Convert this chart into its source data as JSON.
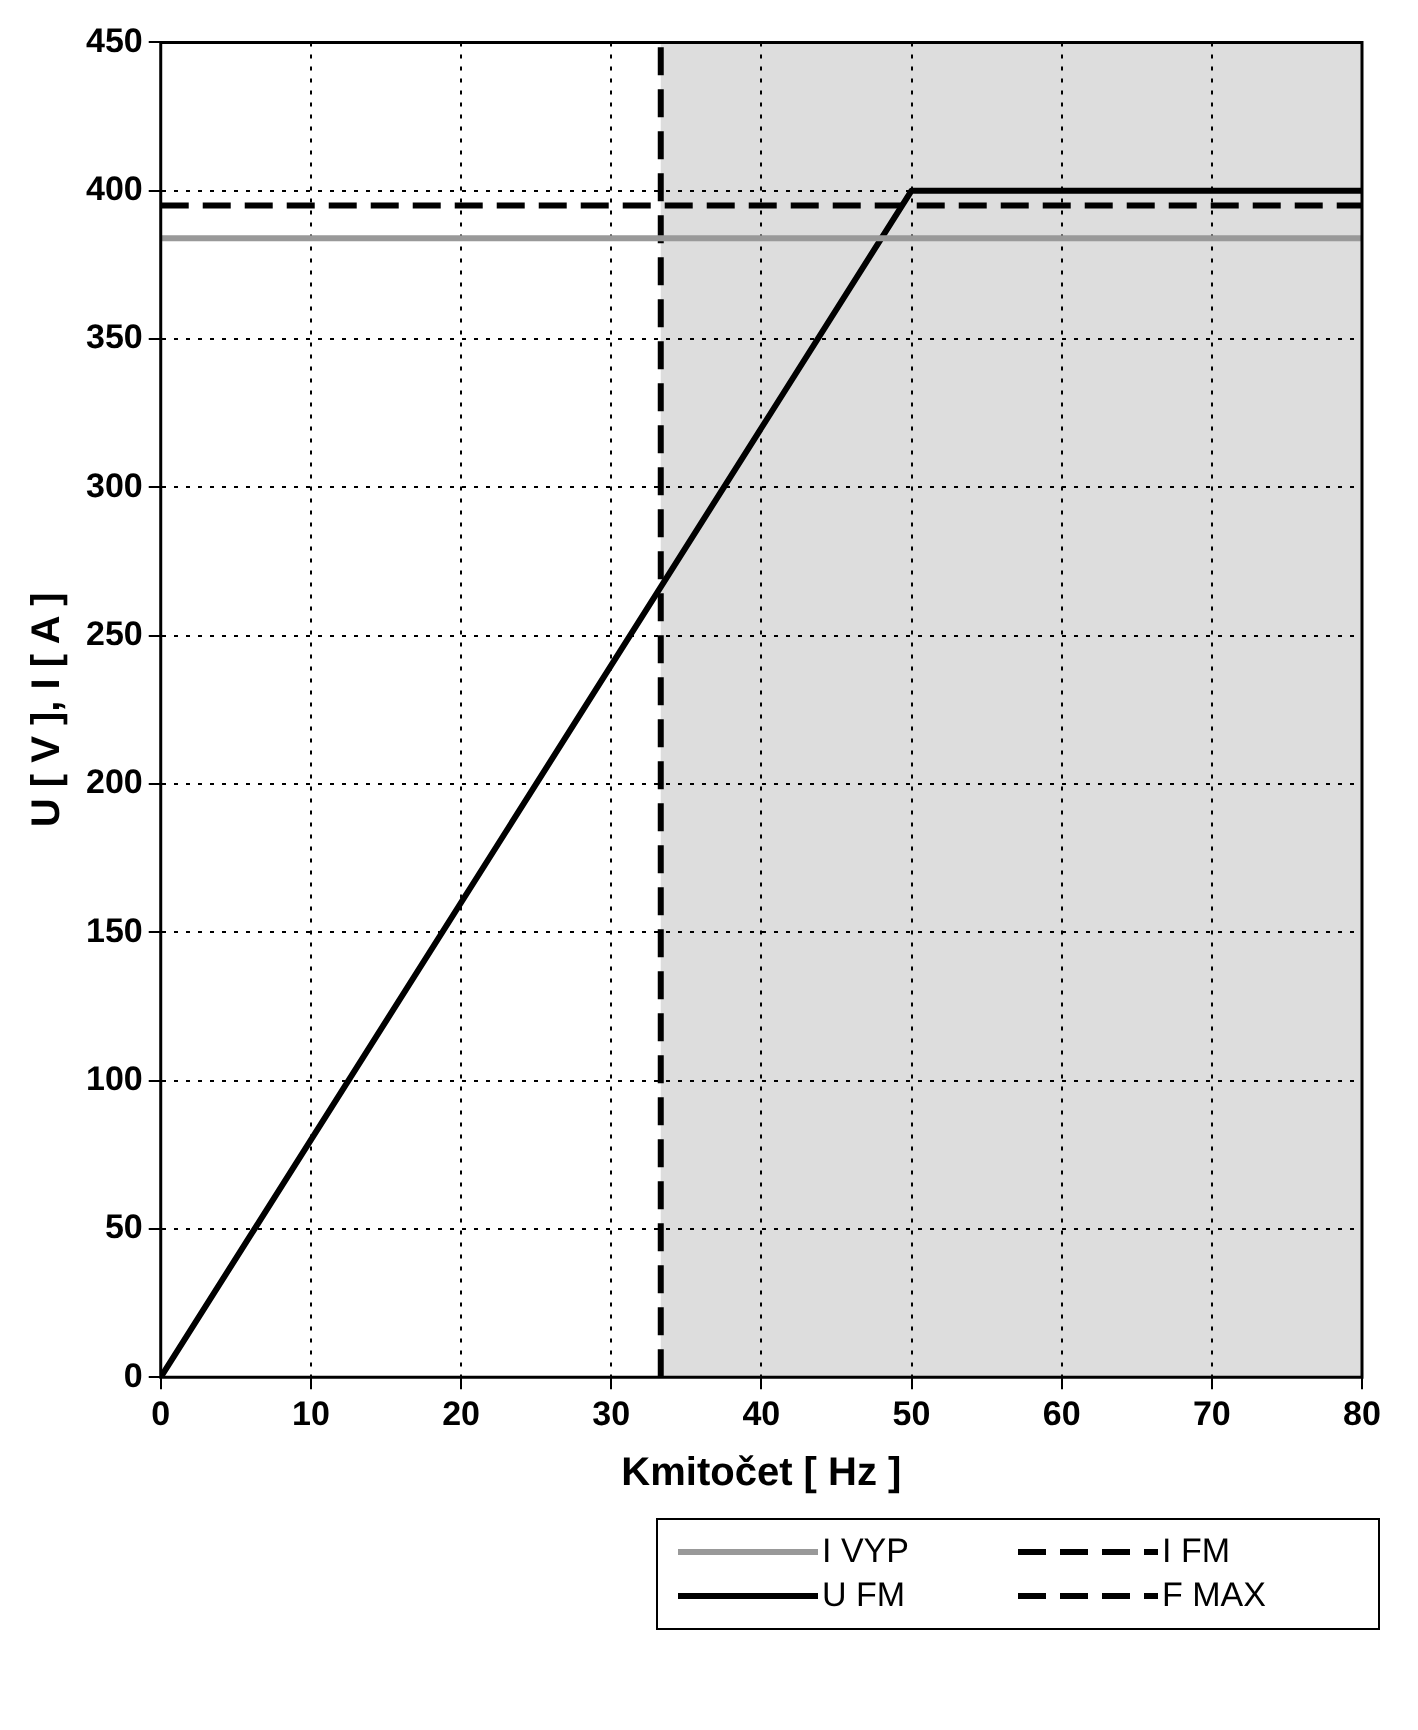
{
  "chart_data": {
    "type": "line",
    "xlabel": "Kmitočet [ Hz ]",
    "ylabel": "U [ V ], I [ A ]",
    "xlim": [
      0,
      80
    ],
    "xticks": [
      0,
      10,
      20,
      30,
      40,
      50,
      60,
      70,
      80
    ],
    "ylim": [
      0,
      450
    ],
    "yticks": [
      0,
      50,
      100,
      150,
      200,
      250,
      300,
      350,
      400,
      450
    ],
    "grid": true,
    "legend": "bottom",
    "marker": "none",
    "bands": [
      {
        "axis": "x",
        "from": 33.3,
        "to": 80,
        "color": "#dddddd"
      }
    ],
    "series": [
      {
        "name": "I VYP",
        "color": "#999999",
        "x": [
          0,
          80
        ],
        "values": [
          384,
          384
        ],
        "line_style": "solid"
      },
      {
        "name": "I FM",
        "color": "#000000",
        "x": [
          0,
          80
        ],
        "values": [
          395,
          395
        ],
        "line_style": "dashed"
      },
      {
        "name": "U FM",
        "color": "#000000",
        "x": [
          0,
          50,
          80
        ],
        "values": [
          0,
          400,
          400
        ],
        "line_style": "solid"
      },
      {
        "name": "F MAX",
        "color": "#000000",
        "x": [
          33.3,
          33.3
        ],
        "values": [
          0,
          450
        ],
        "line_style": "dashed"
      }
    ]
  }
}
